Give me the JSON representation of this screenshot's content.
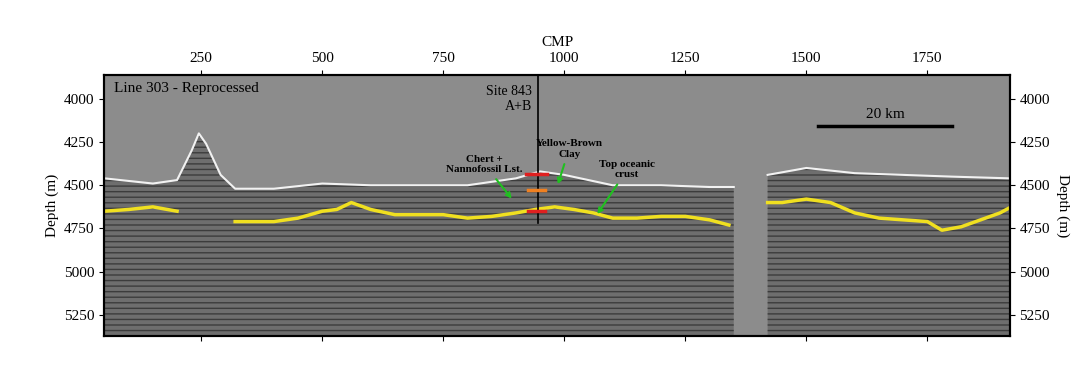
{
  "chart_data": {
    "type": "line",
    "title": "Line 303 - Reprocessed",
    "x_label": "CMP",
    "y_label": "Depth (m)",
    "y2_label": "Depth (m)",
    "xlim": [
      50,
      1920
    ],
    "xticks": [
      250,
      500,
      750,
      1000,
      1250,
      1500,
      1750
    ],
    "ylim": [
      3860,
      5370
    ],
    "yticks": [
      4000,
      4250,
      4500,
      4750,
      5000,
      5250
    ],
    "y2lim": [
      3860,
      5370
    ],
    "y2ticks": [
      4000,
      4250,
      4500,
      4750,
      5000,
      5250
    ],
    "series": [
      {
        "type": "area",
        "color": "#6e6e6e",
        "x": [
          50,
          150,
          200,
          230,
          245,
          260,
          290,
          320,
          400,
          500,
          600,
          700,
          800,
          900,
          950,
          1000,
          1050,
          1100,
          1200,
          1300,
          1350,
          1380,
          1420,
          1500,
          1600,
          1700,
          1800,
          1920
        ],
        "values": [
          4460,
          4490,
          4470,
          4300,
          4200,
          4260,
          4440,
          4520,
          4520,
          4490,
          4500,
          4500,
          4500,
          4460,
          4420,
          4440,
          4470,
          4500,
          4500,
          4510,
          4510,
          null,
          4440,
          4400,
          4430,
          4440,
          4450,
          4460
        ]
      },
      {
        "type": "line",
        "color": "#f0e020",
        "x": [
          50,
          100,
          150,
          200,
          250,
          320,
          400,
          450,
          500,
          530,
          560,
          600,
          650,
          700,
          750,
          800,
          850,
          900,
          940,
          980,
          1020,
          1060,
          1100,
          1150,
          1200,
          1250,
          1300,
          1340,
          1380,
          1420,
          1450,
          1500,
          1550,
          1600,
          1650,
          1700,
          1750,
          1780,
          1820,
          1860,
          1900,
          1920
        ],
        "values": [
          4650,
          4640,
          4625,
          4650,
          null,
          4710,
          4710,
          4690,
          4650,
          4640,
          4600,
          4640,
          4670,
          4670,
          4670,
          4690,
          4680,
          4660,
          4640,
          4625,
          4640,
          4660,
          4690,
          4690,
          4680,
          4680,
          4700,
          4730,
          null,
          4600,
          4600,
          4580,
          4600,
          4660,
          4690,
          4700,
          4710,
          4760,
          4740,
          4700,
          4660,
          4630
        ]
      }
    ],
    "site": {
      "label": "Site 843\nA+B",
      "cmp": 945,
      "depth_range": [
        3860,
        4720
      ],
      "color": "#000000"
    },
    "site_marks": [
      {
        "depth": 4435,
        "cmp_range": [
          920,
          965
        ],
        "color": "#e02020"
      },
      {
        "depth": 4530,
        "cmp_range": [
          925,
          960
        ],
        "color": "#f08020"
      },
      {
        "depth": 4650,
        "cmp_range": [
          925,
          960
        ],
        "color": "#e02020"
      }
    ],
    "annotations": [
      {
        "text": "Chert +\nNannofossil Lst.",
        "xy": [
          895,
          4590
        ],
        "xytext": [
          835,
          4380
        ],
        "color": "#20c020"
      },
      {
        "text": "Yellow-Brown\nClay",
        "xy": [
          985,
          4510
        ],
        "xytext": [
          1010,
          4290
        ],
        "color": "#20c020"
      },
      {
        "text": "Top oceanic\ncrust",
        "xy": [
          1065,
          4680
        ],
        "xytext": [
          1130,
          4410
        ],
        "color": "#20c020"
      }
    ],
    "scale_bar": {
      "label": "20 km",
      "x": [
        1525,
        1800
      ],
      "y": 4160
    }
  }
}
